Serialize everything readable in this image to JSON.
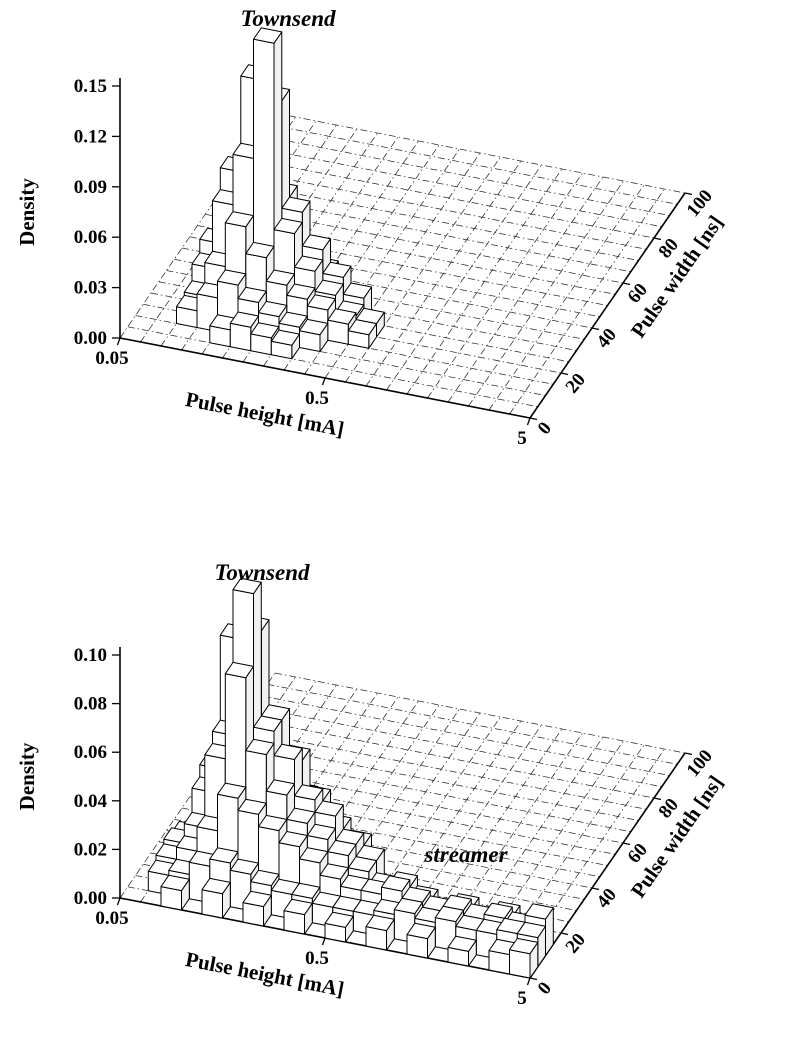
{
  "page": {
    "background": "#ffffff",
    "ink_color": "#000000",
    "description": "Two 3D pulse-density histograms (Townsend / streamer discharges)"
  },
  "chart_data": [
    {
      "type": "bar",
      "projection": "3d-histogram",
      "ylabel": "Density",
      "xlabel": "Pulse height [mA]",
      "depth_label": "Pulse width [ns]",
      "y_ticks": [
        "0.00",
        "0.03",
        "0.06",
        "0.09",
        "0.12",
        "0.15"
      ],
      "ylim": [
        0,
        0.15
      ],
      "x_ticks": [
        "0.05",
        "0.5",
        "5"
      ],
      "x_axis": {
        "scale": "log",
        "min": 0.05,
        "max": 5,
        "bins": 20
      },
      "depth_ticks": [
        "0",
        "20",
        "40",
        "60",
        "80",
        "100"
      ],
      "depth_axis": {
        "min": 0,
        "max": 100,
        "bins": 20
      },
      "grid": true,
      "legend": "none",
      "annotations": [
        {
          "text": "Townsend"
        }
      ],
      "bars_format": "[pulse_height_bin, pulse_width_bin, density]",
      "bars": [
        [
          4,
          1,
          0.01
        ],
        [
          5,
          1,
          0.014
        ],
        [
          6,
          1,
          0.01
        ],
        [
          7,
          1,
          0.008
        ],
        [
          2,
          2,
          0.01
        ],
        [
          3,
          2,
          0.02
        ],
        [
          4,
          2,
          0.03
        ],
        [
          5,
          2,
          0.022
        ],
        [
          6,
          2,
          0.016
        ],
        [
          7,
          2,
          0.012
        ],
        [
          8,
          2,
          0.01
        ],
        [
          2,
          3,
          0.012
        ],
        [
          3,
          3,
          0.032
        ],
        [
          4,
          3,
          0.058
        ],
        [
          5,
          3,
          0.042
        ],
        [
          6,
          3,
          0.028
        ],
        [
          7,
          3,
          0.022
        ],
        [
          8,
          3,
          0.018
        ],
        [
          9,
          3,
          0.012
        ],
        [
          10,
          3,
          0.008
        ],
        [
          2,
          4,
          0.022
        ],
        [
          3,
          4,
          0.062
        ],
        [
          4,
          4,
          0.092
        ],
        [
          5,
          4,
          0.163
        ],
        [
          6,
          4,
          0.052
        ],
        [
          7,
          4,
          0.032
        ],
        [
          8,
          4,
          0.02
        ],
        [
          9,
          4,
          0.01
        ],
        [
          10,
          4,
          0.008
        ],
        [
          2,
          5,
          0.03
        ],
        [
          3,
          5,
          0.075
        ],
        [
          4,
          5,
          0.132
        ],
        [
          5,
          5,
          0.122
        ],
        [
          6,
          5,
          0.058
        ],
        [
          7,
          5,
          0.038
        ],
        [
          8,
          5,
          0.024
        ],
        [
          9,
          5,
          0.014
        ],
        [
          3,
          6,
          0.04
        ],
        [
          4,
          6,
          0.068
        ],
        [
          5,
          6,
          0.058
        ],
        [
          6,
          6,
          0.03
        ],
        [
          7,
          6,
          0.018
        ],
        [
          4,
          7,
          0.028
        ],
        [
          5,
          7,
          0.022
        ],
        [
          6,
          7,
          0.012
        ]
      ]
    },
    {
      "type": "bar",
      "projection": "3d-histogram",
      "ylabel": "Density",
      "xlabel": "Pulse height [mA]",
      "depth_label": "Pulse width [ns]",
      "y_ticks": [
        "0.00",
        "0.02",
        "0.04",
        "0.06",
        "0.08",
        "0.10"
      ],
      "ylim": [
        0,
        0.1
      ],
      "x_ticks": [
        "0.05",
        "0.5",
        "5"
      ],
      "x_axis": {
        "scale": "log",
        "min": 0.05,
        "max": 5,
        "bins": 20
      },
      "depth_ticks": [
        "0",
        "20",
        "40",
        "60",
        "80",
        "100"
      ],
      "depth_axis": {
        "min": 0,
        "max": 100,
        "bins": 20
      },
      "grid": true,
      "legend": "none",
      "annotations": [
        {
          "text": "Townsend"
        },
        {
          "text": "streamer"
        }
      ],
      "bars_format": "[pulse_height_bin, pulse_width_bin, density]",
      "bars": [
        [
          2,
          0,
          0.008
        ],
        [
          4,
          0,
          0.01
        ],
        [
          6,
          0,
          0.008
        ],
        [
          8,
          0,
          0.008
        ],
        [
          10,
          0,
          0.006
        ],
        [
          12,
          0,
          0.008
        ],
        [
          14,
          0,
          0.008
        ],
        [
          16,
          0,
          0.006
        ],
        [
          18,
          0,
          0.008
        ],
        [
          19,
          0,
          0.01
        ],
        [
          1,
          1,
          0.008
        ],
        [
          2,
          1,
          0.01
        ],
        [
          3,
          1,
          0.015
        ],
        [
          4,
          1,
          0.018
        ],
        [
          5,
          1,
          0.015
        ],
        [
          6,
          1,
          0.012
        ],
        [
          7,
          1,
          0.01
        ],
        [
          8,
          1,
          0.01
        ],
        [
          9,
          1,
          0.008
        ],
        [
          10,
          1,
          0.008
        ],
        [
          11,
          1,
          0.008
        ],
        [
          12,
          1,
          0.01
        ],
        [
          13,
          1,
          0.012
        ],
        [
          14,
          1,
          0.01
        ],
        [
          15,
          1,
          0.012
        ],
        [
          16,
          1,
          0.01
        ],
        [
          17,
          1,
          0.01
        ],
        [
          18,
          1,
          0.012
        ],
        [
          19,
          1,
          0.012
        ],
        [
          1,
          2,
          0.01
        ],
        [
          2,
          2,
          0.015
        ],
        [
          3,
          2,
          0.025
        ],
        [
          4,
          2,
          0.04
        ],
        [
          5,
          2,
          0.035
        ],
        [
          6,
          2,
          0.03
        ],
        [
          7,
          2,
          0.025
        ],
        [
          8,
          2,
          0.02
        ],
        [
          9,
          2,
          0.015
        ],
        [
          10,
          2,
          0.012
        ],
        [
          11,
          2,
          0.012
        ],
        [
          12,
          2,
          0.015
        ],
        [
          13,
          2,
          0.012
        ],
        [
          14,
          2,
          0.01
        ],
        [
          15,
          2,
          0.012
        ],
        [
          16,
          2,
          0.01
        ],
        [
          17,
          2,
          0.012
        ],
        [
          18,
          2,
          0.01
        ],
        [
          19,
          2,
          0.015
        ],
        [
          1,
          3,
          0.012
        ],
        [
          2,
          3,
          0.02
        ],
        [
          3,
          3,
          0.05
        ],
        [
          4,
          3,
          0.085
        ],
        [
          5,
          3,
          0.055
        ],
        [
          6,
          3,
          0.04
        ],
        [
          7,
          3,
          0.03
        ],
        [
          8,
          3,
          0.025
        ],
        [
          9,
          3,
          0.02
        ],
        [
          10,
          3,
          0.015
        ],
        [
          11,
          3,
          0.01
        ],
        [
          12,
          3,
          0.012
        ],
        [
          13,
          3,
          0.008
        ],
        [
          15,
          3,
          0.008
        ],
        [
          17,
          3,
          0.008
        ],
        [
          1,
          4,
          0.01
        ],
        [
          2,
          4,
          0.03
        ],
        [
          3,
          4,
          0.055
        ],
        [
          4,
          4,
          0.115
        ],
        [
          5,
          4,
          0.06
        ],
        [
          6,
          4,
          0.05
        ],
        [
          7,
          4,
          0.035
        ],
        [
          8,
          4,
          0.03
        ],
        [
          9,
          4,
          0.02
        ],
        [
          10,
          4,
          0.015
        ],
        [
          2,
          5,
          0.035
        ],
        [
          3,
          5,
          0.09
        ],
        [
          4,
          5,
          0.095
        ],
        [
          5,
          5,
          0.06
        ],
        [
          6,
          5,
          0.045
        ],
        [
          7,
          5,
          0.03
        ],
        [
          8,
          5,
          0.02
        ],
        [
          9,
          5,
          0.015
        ],
        [
          3,
          6,
          0.04
        ],
        [
          4,
          6,
          0.05
        ],
        [
          5,
          6,
          0.035
        ],
        [
          6,
          6,
          0.025
        ],
        [
          3,
          7,
          0.015
        ],
        [
          4,
          7,
          0.025
        ],
        [
          5,
          7,
          0.02
        ]
      ]
    }
  ]
}
